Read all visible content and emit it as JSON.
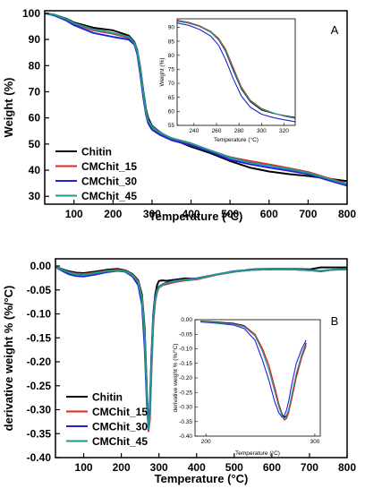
{
  "figure": {
    "legend": [
      "Chitin",
      "CMChit_15",
      "CMChit_30",
      "CMChit_45"
    ],
    "colors": {
      "Chitin": "#000000",
      "CMChit_15": "#e8231f",
      "CMChit_30": "#2222dd",
      "CMChit_45": "#1f9a8a"
    }
  },
  "chart_data": [
    {
      "type": "line",
      "panel": "A",
      "xlabel": "Temperature (°C)",
      "ylabel": "Weight  (%)",
      "xlim": [
        25,
        800
      ],
      "ylim": [
        27,
        101
      ],
      "xticks": [
        100,
        200,
        300,
        400,
        500,
        600,
        700,
        800
      ],
      "yticks": [
        30,
        40,
        50,
        60,
        70,
        80,
        90,
        100
      ],
      "legend_position": "bottom-left",
      "series": [
        {
          "name": "Chitin",
          "x": [
            25,
            50,
            80,
            100,
            150,
            200,
            240,
            255,
            262,
            270,
            278,
            285,
            290,
            300,
            320,
            350,
            400,
            450,
            500,
            550,
            600,
            650,
            700,
            750,
            800
          ],
          "y": [
            100,
            99.5,
            98,
            96.5,
            94.5,
            93.5,
            91.5,
            89,
            86,
            79,
            70,
            63,
            60,
            57,
            54.5,
            52,
            49,
            46.5,
            43.5,
            41,
            39.5,
            38.5,
            37.8,
            36.8,
            35.8
          ]
        },
        {
          "name": "CMChit_15",
          "x": [
            25,
            50,
            80,
            100,
            150,
            200,
            240,
            255,
            262,
            270,
            278,
            285,
            290,
            300,
            320,
            350,
            400,
            450,
            500,
            550,
            600,
            650,
            700,
            750,
            800
          ],
          "y": [
            100,
            99.4,
            97.7,
            96,
            93.5,
            92.2,
            90.7,
            88.5,
            85.5,
            78,
            69,
            62,
            59,
            56.5,
            54,
            52,
            50,
            47.5,
            45,
            43.5,
            42.2,
            40.8,
            39.3,
            37,
            34.8
          ]
        },
        {
          "name": "CMChit_30",
          "x": [
            25,
            50,
            80,
            100,
            150,
            200,
            240,
            255,
            262,
            270,
            278,
            285,
            290,
            300,
            320,
            350,
            400,
            450,
            500,
            550,
            600,
            650,
            700,
            750,
            800
          ],
          "y": [
            100,
            99.2,
            97.3,
            95.5,
            92.5,
            91,
            90,
            88,
            84.5,
            76.5,
            67.5,
            61,
            58,
            55.5,
            53.5,
            51.5,
            49.5,
            47,
            44,
            42.3,
            41,
            39.8,
            38.5,
            36.2,
            34.1
          ]
        },
        {
          "name": "CMChit_45",
          "x": [
            25,
            50,
            80,
            100,
            150,
            200,
            240,
            255,
            262,
            270,
            278,
            285,
            290,
            300,
            320,
            350,
            400,
            450,
            500,
            550,
            600,
            650,
            700,
            750,
            800
          ],
          "y": [
            100,
            99.5,
            97.8,
            96.2,
            93.8,
            92.5,
            91,
            88.7,
            85.5,
            78.5,
            69.3,
            62,
            59,
            56.7,
            54.3,
            52.3,
            50.3,
            47.5,
            44.8,
            43,
            41.8,
            40.5,
            39,
            36.8,
            34.6
          ]
        }
      ]
    },
    {
      "type": "line",
      "panel": "A-inset",
      "xlabel": "Temperature (°C)",
      "ylabel": "Weight  (%)",
      "xlim": [
        225,
        330
      ],
      "ylim": [
        55,
        93
      ],
      "xticks": [
        240,
        260,
        280,
        300,
        320
      ],
      "yticks": [
        55,
        60,
        65,
        70,
        75,
        80,
        85,
        90
      ],
      "series": [
        {
          "name": "Chitin",
          "x": [
            225,
            235,
            245,
            255,
            262,
            268,
            275,
            282,
            290,
            300,
            310,
            320,
            330
          ],
          "y": [
            92.2,
            91.5,
            90.3,
            88.2,
            85.5,
            81.5,
            74.5,
            68,
            63.5,
            60.5,
            59.3,
            58.5,
            57.8
          ]
        },
        {
          "name": "CMChit_15",
          "x": [
            225,
            235,
            245,
            255,
            262,
            268,
            275,
            282,
            290,
            300,
            310,
            320,
            330
          ],
          "y": [
            92.5,
            91.8,
            90.5,
            88.5,
            86,
            82.3,
            75.5,
            68.8,
            64,
            61,
            59.5,
            58.3,
            57.5
          ]
        },
        {
          "name": "CMChit_30",
          "x": [
            225,
            235,
            245,
            255,
            262,
            268,
            275,
            282,
            290,
            300,
            310,
            320,
            330
          ],
          "y": [
            91.5,
            90.7,
            89.2,
            86.8,
            83.5,
            78.5,
            71.5,
            65.5,
            61.5,
            59,
            57.8,
            57,
            56.3
          ]
        },
        {
          "name": "CMChit_45",
          "x": [
            225,
            235,
            245,
            255,
            262,
            268,
            275,
            282,
            290,
            300,
            310,
            320,
            330
          ],
          "y": [
            92.3,
            91.6,
            90.3,
            88.3,
            85.7,
            81.8,
            75,
            68.3,
            63.8,
            60.8,
            59.4,
            58.4,
            57.6
          ]
        }
      ]
    },
    {
      "type": "line",
      "panel": "B",
      "xlabel": "Temperature (°C)",
      "ylabel": "derivative weight % (%/°C)",
      "xlim": [
        25,
        800
      ],
      "ylim": [
        -0.4,
        0.015
      ],
      "xticks": [
        100,
        200,
        300,
        400,
        500,
        600,
        700,
        800
      ],
      "yticks": [
        0.0,
        -0.05,
        -0.1,
        -0.15,
        -0.2,
        -0.25,
        -0.3,
        -0.35,
        -0.4
      ],
      "ytick_labels": [
        "0.00",
        "-0.05",
        "-0.10",
        "-0.15",
        "-0.20",
        "-0.25",
        "-0.30",
        "-0.35",
        "-0.40"
      ],
      "legend_position": "bottom-left",
      "series": [
        {
          "name": "Chitin",
          "x": [
            25,
            40,
            60,
            80,
            100,
            130,
            160,
            190,
            210,
            230,
            245,
            255,
            262,
            268,
            272,
            276,
            280,
            285,
            290,
            295,
            300,
            310,
            320,
            340,
            370,
            400,
            450,
            500,
            550,
            600,
            650,
            700,
            730,
            760,
            800
          ],
          "y": [
            -0.001,
            -0.006,
            -0.011,
            -0.014,
            -0.015,
            -0.012,
            -0.008,
            -0.006,
            -0.009,
            -0.017,
            -0.03,
            -0.06,
            -0.13,
            -0.26,
            -0.335,
            -0.3,
            -0.19,
            -0.1,
            -0.06,
            -0.04,
            -0.031,
            -0.03,
            -0.031,
            -0.029,
            -0.026,
            -0.027,
            -0.018,
            -0.012,
            -0.007,
            -0.006,
            -0.006,
            -0.007,
            -0.003,
            -0.003,
            -0.003
          ]
        },
        {
          "name": "CMChit_15",
          "x": [
            25,
            40,
            60,
            80,
            100,
            130,
            160,
            190,
            210,
            230,
            245,
            255,
            262,
            268,
            272,
            276,
            280,
            285,
            290,
            295,
            300,
            310,
            320,
            340,
            370,
            400,
            450,
            500,
            550,
            600,
            650,
            700,
            730,
            760,
            800
          ],
          "y": [
            -0.001,
            -0.007,
            -0.013,
            -0.016,
            -0.017,
            -0.014,
            -0.01,
            -0.008,
            -0.01,
            -0.018,
            -0.032,
            -0.065,
            -0.14,
            -0.27,
            -0.345,
            -0.32,
            -0.22,
            -0.12,
            -0.075,
            -0.055,
            -0.045,
            -0.04,
            -0.038,
            -0.034,
            -0.03,
            -0.028,
            -0.019,
            -0.012,
            -0.008,
            -0.007,
            -0.007,
            -0.009,
            -0.011,
            -0.008,
            -0.006
          ]
        },
        {
          "name": "CMChit_30",
          "x": [
            25,
            40,
            60,
            80,
            100,
            130,
            160,
            190,
            210,
            230,
            245,
            255,
            262,
            268,
            272,
            276,
            280,
            285,
            290,
            295,
            300,
            310,
            320,
            340,
            370,
            400,
            450,
            500,
            550,
            600,
            650,
            700,
            730,
            760,
            800
          ],
          "y": [
            -0.002,
            -0.009,
            -0.017,
            -0.021,
            -0.022,
            -0.018,
            -0.013,
            -0.01,
            -0.012,
            -0.022,
            -0.04,
            -0.08,
            -0.17,
            -0.29,
            -0.335,
            -0.29,
            -0.19,
            -0.1,
            -0.065,
            -0.05,
            -0.043,
            -0.038,
            -0.035,
            -0.031,
            -0.028,
            -0.026,
            -0.018,
            -0.011,
            -0.008,
            -0.007,
            -0.007,
            -0.009,
            -0.011,
            -0.008,
            -0.007
          ]
        },
        {
          "name": "CMChit_45",
          "x": [
            25,
            40,
            60,
            80,
            100,
            130,
            160,
            190,
            210,
            230,
            245,
            255,
            262,
            268,
            272,
            276,
            280,
            285,
            290,
            295,
            300,
            310,
            320,
            340,
            370,
            400,
            450,
            500,
            550,
            600,
            650,
            700,
            730,
            760,
            800
          ],
          "y": [
            -0.001,
            -0.007,
            -0.013,
            -0.017,
            -0.018,
            -0.015,
            -0.011,
            -0.009,
            -0.011,
            -0.019,
            -0.034,
            -0.068,
            -0.145,
            -0.275,
            -0.34,
            -0.31,
            -0.21,
            -0.11,
            -0.07,
            -0.052,
            -0.044,
            -0.039,
            -0.036,
            -0.032,
            -0.029,
            -0.027,
            -0.018,
            -0.012,
            -0.008,
            -0.007,
            -0.007,
            -0.009,
            -0.01,
            -0.008,
            -0.006
          ]
        }
      ]
    },
    {
      "type": "line",
      "panel": "B-inset",
      "xlabel": "Temperature (°C)",
      "ylabel": "derivative weight % (%/°C)",
      "xlim": [
        190,
        305
      ],
      "ylim": [
        -0.4,
        0.0
      ],
      "xticks": [
        200,
        300
      ],
      "yticks": [
        0.0,
        -0.05,
        -0.1,
        -0.15,
        -0.2,
        -0.25,
        -0.3,
        -0.35,
        -0.4
      ],
      "ytick_labels": [
        "0.00",
        "-0.05",
        "-0.10",
        "-0.15",
        "-0.20",
        "-0.25",
        "-0.30",
        "-0.35",
        "-0.40"
      ],
      "series": [
        {
          "name": "Chitin",
          "x": [
            195,
            210,
            225,
            235,
            245,
            252,
            258,
            263,
            267,
            270,
            272,
            274,
            276,
            279,
            283,
            288,
            292
          ],
          "y": [
            -0.005,
            -0.008,
            -0.012,
            -0.02,
            -0.05,
            -0.1,
            -0.16,
            -0.23,
            -0.29,
            -0.325,
            -0.335,
            -0.33,
            -0.31,
            -0.26,
            -0.19,
            -0.12,
            -0.08
          ]
        },
        {
          "name": "CMChit_15",
          "x": [
            195,
            210,
            225,
            235,
            245,
            252,
            258,
            263,
            267,
            270,
            272,
            274,
            276,
            279,
            283,
            288,
            292
          ],
          "y": [
            -0.006,
            -0.01,
            -0.014,
            -0.022,
            -0.05,
            -0.1,
            -0.16,
            -0.23,
            -0.29,
            -0.33,
            -0.345,
            -0.34,
            -0.32,
            -0.27,
            -0.2,
            -0.13,
            -0.09
          ]
        },
        {
          "name": "CMChit_30",
          "x": [
            195,
            210,
            225,
            235,
            245,
            252,
            258,
            263,
            267,
            270,
            272,
            274,
            276,
            279,
            283,
            288,
            292
          ],
          "y": [
            -0.008,
            -0.012,
            -0.018,
            -0.03,
            -0.07,
            -0.14,
            -0.21,
            -0.28,
            -0.32,
            -0.335,
            -0.33,
            -0.31,
            -0.28,
            -0.22,
            -0.15,
            -0.1,
            -0.07
          ]
        },
        {
          "name": "CMChit_45",
          "x": [
            195,
            210,
            225,
            235,
            245,
            252,
            258,
            263,
            267,
            270,
            272,
            274,
            276,
            279,
            283,
            288,
            292
          ],
          "y": [
            -0.006,
            -0.01,
            -0.015,
            -0.024,
            -0.055,
            -0.11,
            -0.175,
            -0.245,
            -0.3,
            -0.33,
            -0.34,
            -0.335,
            -0.31,
            -0.255,
            -0.185,
            -0.12,
            -0.085
          ]
        }
      ]
    }
  ]
}
